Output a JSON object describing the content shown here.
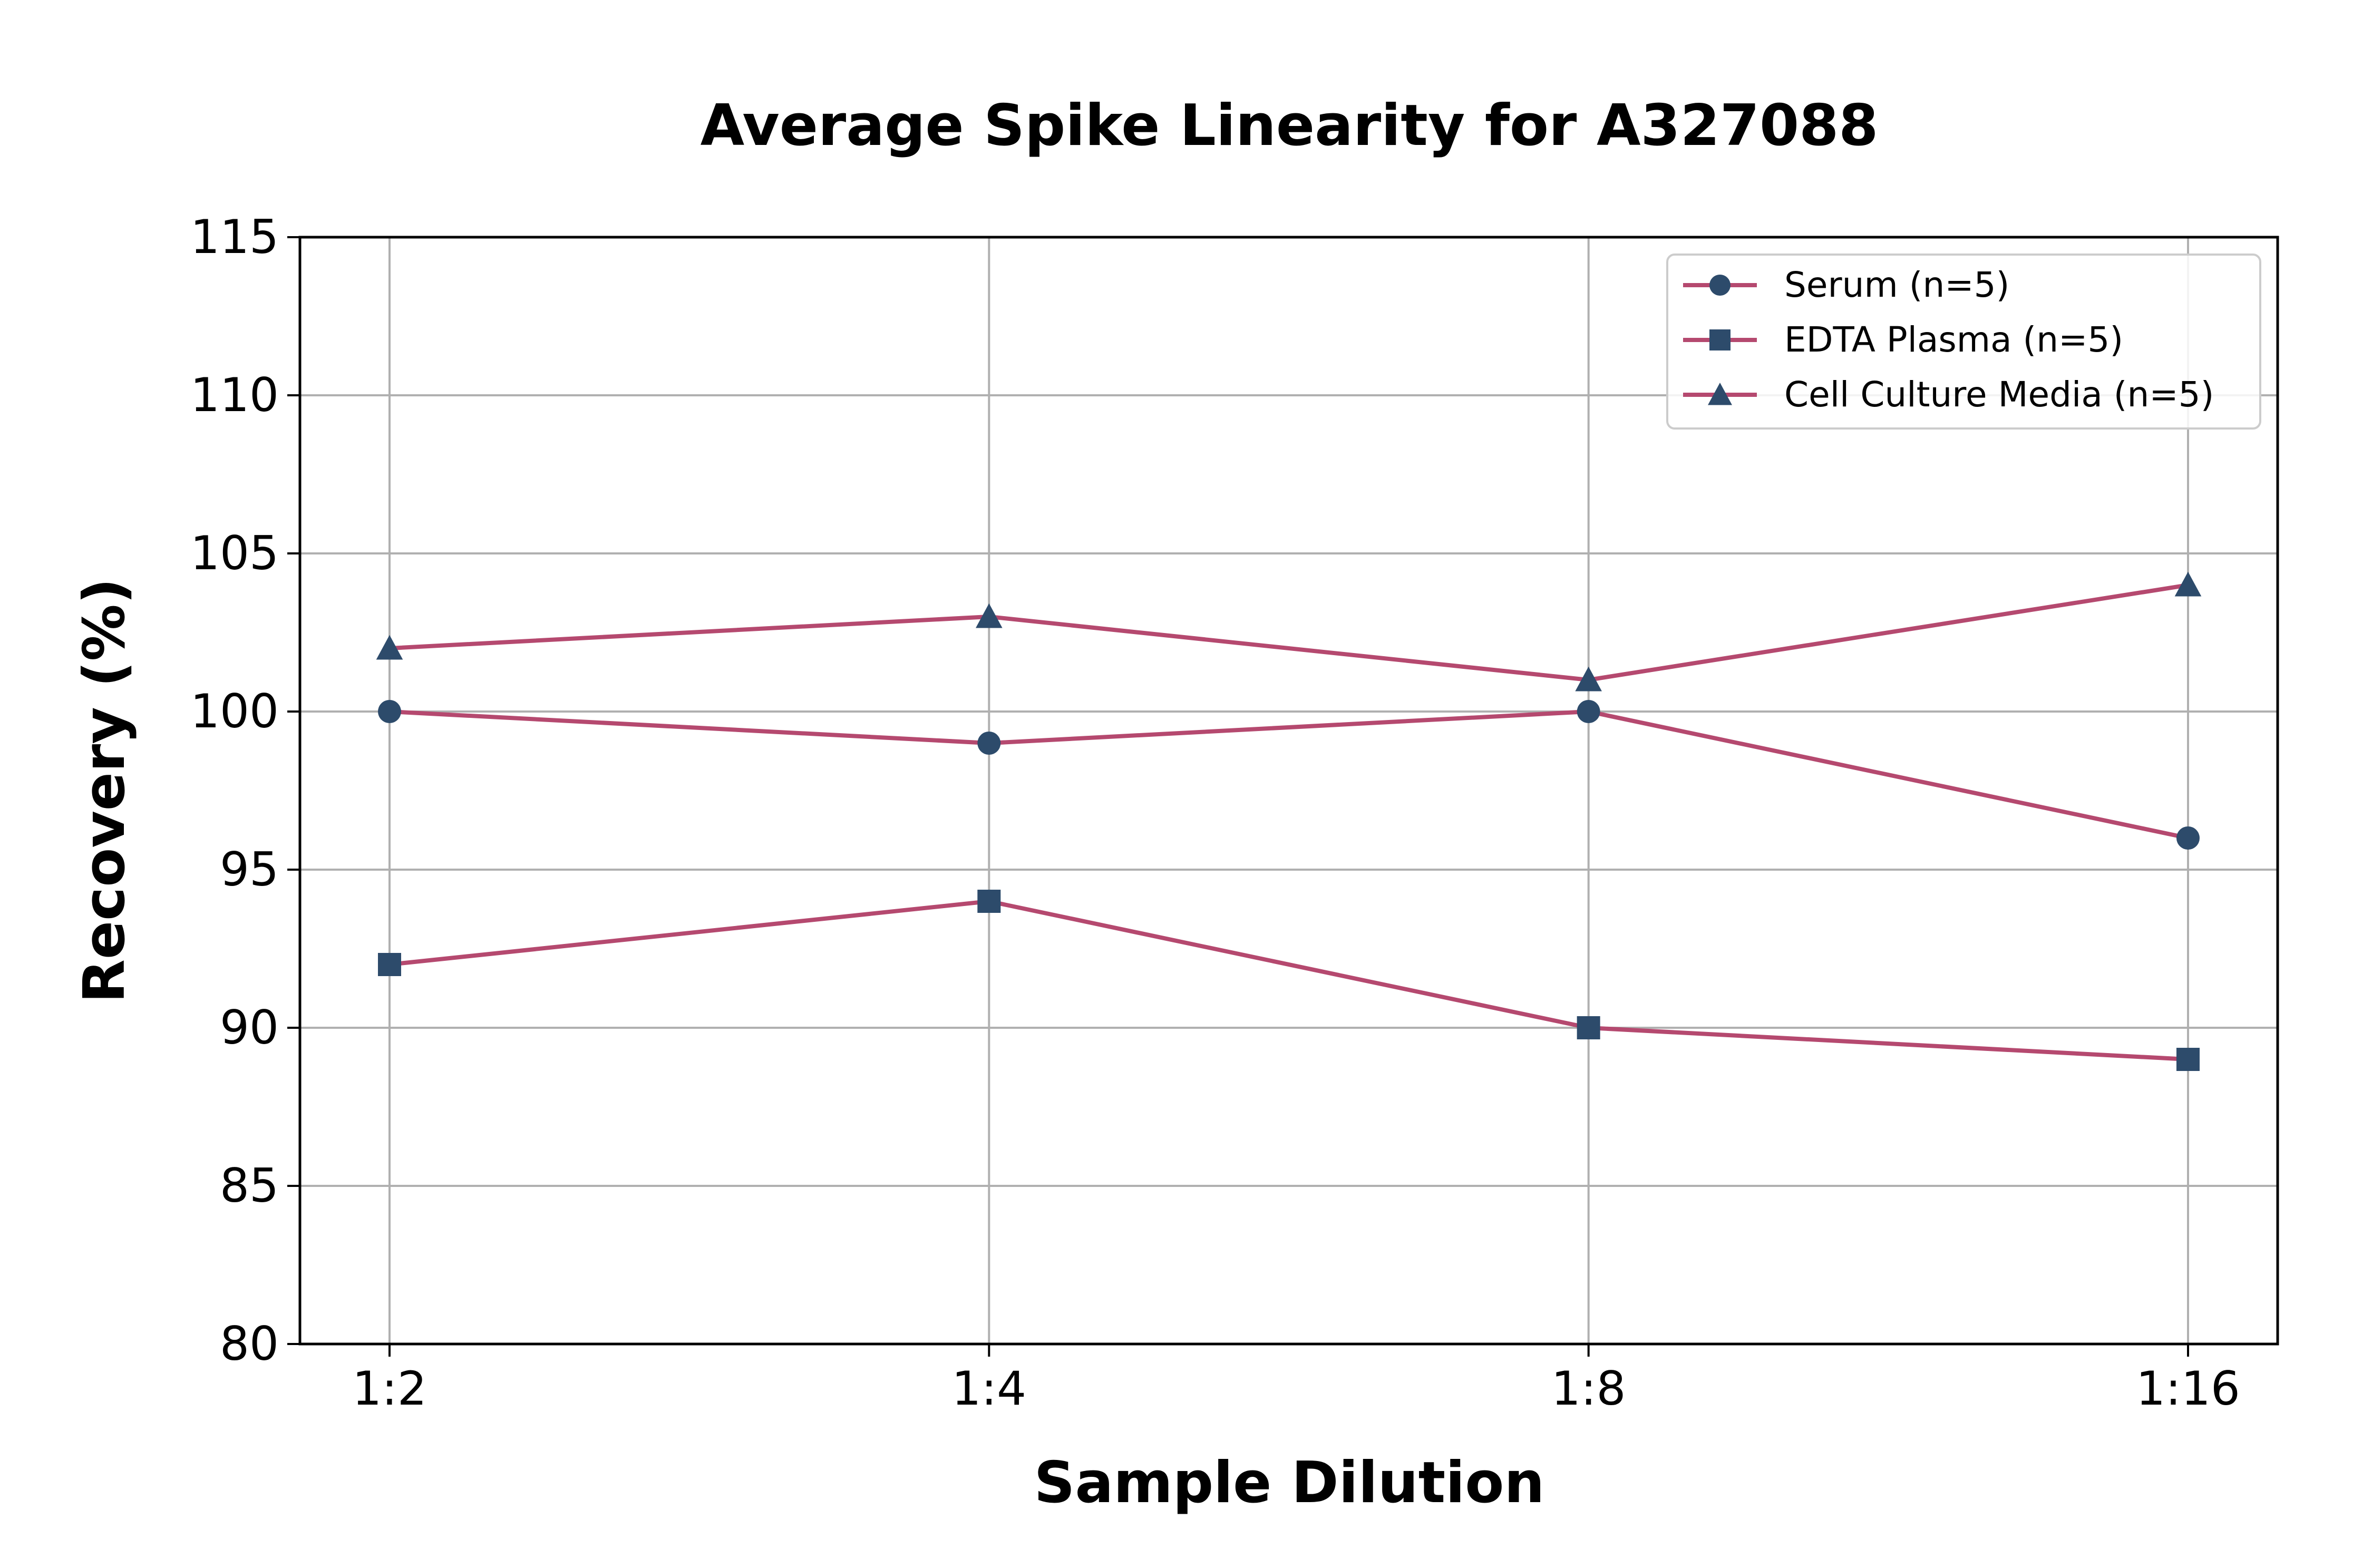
{
  "chart_data": {
    "type": "line",
    "title": "Average Spike Linearity for A327088",
    "xlabel": "Sample Dilution",
    "ylabel": "Recovery (%)",
    "categories": [
      "1:2",
      "1:4",
      "1:8",
      "1:16"
    ],
    "ylim": [
      80,
      115
    ],
    "yticks": [
      80,
      85,
      90,
      95,
      100,
      105,
      110,
      115
    ],
    "grid": true,
    "legend_position": "top-right",
    "line_color": "#b5496f",
    "marker_color": "#2d4b6b",
    "series": [
      {
        "name": "Serum (n=5)",
        "marker": "circle",
        "values": [
          100,
          99,
          100,
          96
        ]
      },
      {
        "name": "EDTA Plasma (n=5)",
        "marker": "square",
        "values": [
          92,
          94,
          90,
          89
        ]
      },
      {
        "name": "Cell Culture Media (n=5)",
        "marker": "triangle",
        "values": [
          102,
          103,
          101,
          104
        ]
      }
    ]
  }
}
